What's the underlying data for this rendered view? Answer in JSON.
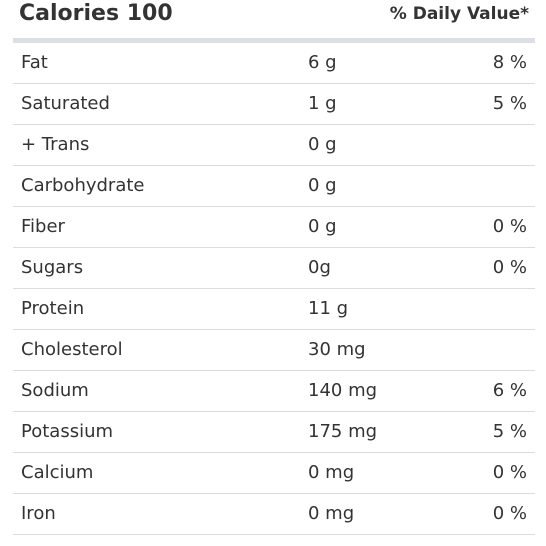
{
  "header": {
    "calories_label": "Calories 100",
    "daily_value_label": "% Daily Value*"
  },
  "nutrients": [
    {
      "name": "Fat",
      "amount": "6 g",
      "dv": "8 %"
    },
    {
      "name": "Saturated",
      "amount": "1 g",
      "dv": "5 %"
    },
    {
      "name": "+ Trans",
      "amount": "0 g",
      "dv": ""
    },
    {
      "name": "Carbohydrate",
      "amount": "0 g",
      "dv": ""
    },
    {
      "name": "Fiber",
      "amount": "0 g",
      "dv": "0 %"
    },
    {
      "name": "Sugars",
      "amount": "0g",
      "dv": "0 %"
    },
    {
      "name": "Protein",
      "amount": "11 g",
      "dv": ""
    },
    {
      "name": "Cholesterol",
      "amount": "30 mg",
      "dv": ""
    },
    {
      "name": "Sodium",
      "amount": "140 mg",
      "dv": "6 %"
    },
    {
      "name": "Potassium",
      "amount": "175 mg",
      "dv": "5 %"
    },
    {
      "name": "Calcium",
      "amount": "0 mg",
      "dv": "0 %"
    },
    {
      "name": "Iron",
      "amount": "0 mg",
      "dv": "0 %"
    }
  ]
}
